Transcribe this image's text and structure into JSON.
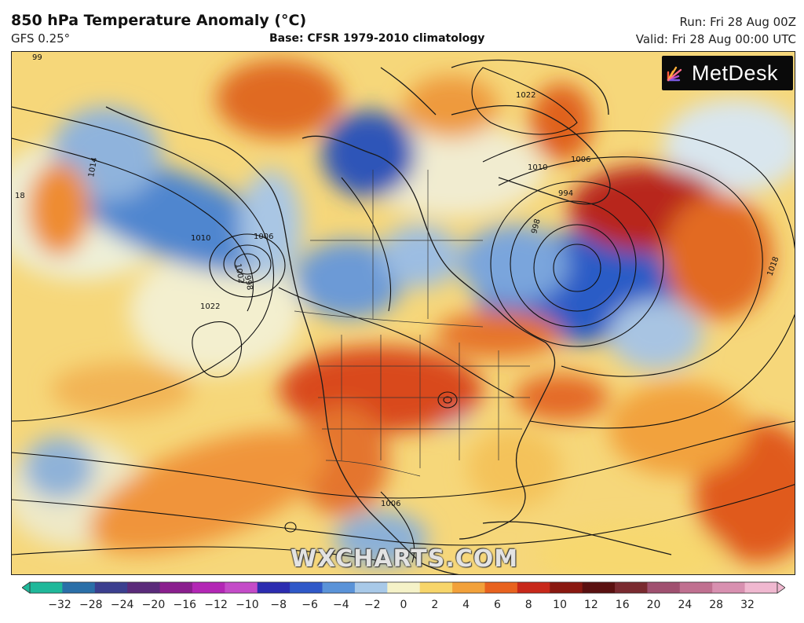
{
  "header": {
    "title": "850 hPa Temperature Anomaly (°C)",
    "model": "GFS 0.25°",
    "base": "Base: CFSR 1979-2010 climatology",
    "run": "Run: Fri 28 Aug 00Z",
    "valid": "Valid: Fri 28 Aug 00:00 UTC"
  },
  "logo": {
    "text": "MetDesk"
  },
  "watermark": "WXCHARTS.COM",
  "isobars": {
    "labels": [
      "1010",
      "1014",
      "1006",
      "1002",
      "998",
      "1022",
      "1010",
      "1006",
      "994",
      "998",
      "1022",
      "1018",
      "1006",
      "18",
      "99"
    ]
  },
  "legend": {
    "ticks": [
      "−32",
      "−28",
      "−24",
      "−20",
      "−16",
      "−12",
      "−10",
      "−8",
      "−6",
      "−4",
      "−2",
      "0",
      "2",
      "4",
      "6",
      "8",
      "10",
      "12",
      "16",
      "20",
      "24",
      "28",
      "32"
    ],
    "colors": [
      "#1fb89a",
      "#2a6fa8",
      "#3b3f8f",
      "#5a2a7a",
      "#8a1e8e",
      "#b326b5",
      "#c44bc8",
      "#2c2cb0",
      "#2f58c8",
      "#5a93d8",
      "#a8c9e8",
      "#f5f2c8",
      "#f7d56a",
      "#f2a13a",
      "#e8621e",
      "#c8281a",
      "#8a1810",
      "#5a1010",
      "#7a2a30",
      "#a05070",
      "#c07090",
      "#d890b0",
      "#f0b8d0"
    ]
  }
}
